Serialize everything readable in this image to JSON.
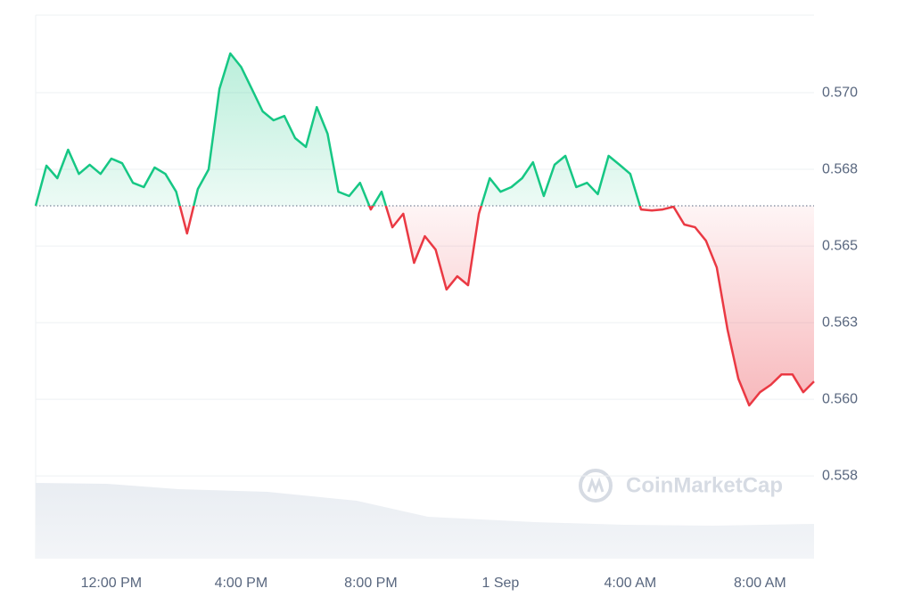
{
  "chart_data": {
    "type": "line",
    "watermark": "CoinMarketCap",
    "categories": [
      null,
      null,
      null,
      null,
      null,
      null,
      null,
      "12:00 PM",
      null,
      null,
      null,
      null,
      null,
      null,
      null,
      null,
      null,
      null,
      null,
      "4:00 PM",
      null,
      null,
      null,
      null,
      null,
      null,
      null,
      null,
      null,
      null,
      null,
      "8:00 PM",
      null,
      null,
      null,
      null,
      null,
      null,
      null,
      null,
      null,
      null,
      null,
      "1 Sep",
      null,
      null,
      null,
      null,
      null,
      null,
      null,
      null,
      null,
      null,
      null,
      "4:00 AM",
      null,
      null,
      null,
      null,
      null,
      null,
      null,
      null,
      null,
      null,
      null,
      "8:00 AM",
      null,
      null,
      null,
      null,
      null
    ],
    "values": [
      0.56631,
      0.56762,
      0.56721,
      0.56814,
      0.56735,
      0.56765,
      0.56735,
      0.56785,
      0.5677,
      0.56706,
      0.56692,
      0.56756,
      0.56735,
      0.56677,
      0.56541,
      0.56686,
      0.5675,
      0.57012,
      0.57128,
      0.57084,
      0.57012,
      0.56939,
      0.5691,
      0.56924,
      0.56852,
      0.56823,
      0.56953,
      0.56866,
      0.56677,
      0.56663,
      0.56706,
      0.56619,
      0.56677,
      0.56561,
      0.56605,
      0.56445,
      0.56532,
      0.56488,
      0.56358,
      0.56401,
      0.56372,
      0.56605,
      0.56721,
      0.56677,
      0.56692,
      0.56721,
      0.56773,
      0.56663,
      0.56765,
      0.56794,
      0.56692,
      0.56706,
      0.56669,
      0.56794,
      0.56765,
      0.56735,
      0.56619,
      0.56616,
      0.56619,
      0.56628,
      0.5657,
      0.56561,
      0.56517,
      0.5643,
      0.56227,
      0.56067,
      0.5598,
      0.56023,
      0.56047,
      0.56081,
      0.56081,
      0.56023,
      0.56058
    ],
    "baseline": 0.56631,
    "up_color": "#16c784",
    "down_color": "#ea3943",
    "ylim": [
      0.5548,
      0.57253
    ],
    "yticks": [
      {
        "value": 0.5575,
        "label": "0.558"
      },
      {
        "value": 0.56,
        "label": "0.560"
      },
      {
        "value": 0.5625,
        "label": "0.563"
      },
      0.565,
      {
        "value": 0.5675,
        "label": "0.568"
      },
      {
        "value": 0.57,
        "label": "0.570"
      }
    ],
    "grid": true
  }
}
